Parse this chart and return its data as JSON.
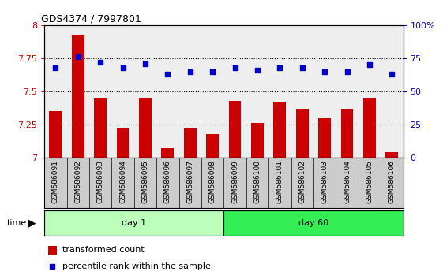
{
  "title": "GDS4374 / 7997801",
  "samples": [
    "GSM586091",
    "GSM586092",
    "GSM586093",
    "GSM586094",
    "GSM586095",
    "GSM586096",
    "GSM586097",
    "GSM586098",
    "GSM586099",
    "GSM586100",
    "GSM586101",
    "GSM586102",
    "GSM586103",
    "GSM586104",
    "GSM586105",
    "GSM586106"
  ],
  "bar_values": [
    7.35,
    7.92,
    7.45,
    7.22,
    7.45,
    7.07,
    7.22,
    7.18,
    7.43,
    7.26,
    7.42,
    7.37,
    7.3,
    7.37,
    7.45,
    7.04
  ],
  "dot_values": [
    68,
    76,
    72,
    68,
    71,
    63,
    65,
    65,
    68,
    66,
    68,
    68,
    65,
    65,
    70,
    63
  ],
  "bar_color": "#cc0000",
  "dot_color": "#0000cc",
  "ylim_left": [
    7.0,
    8.0
  ],
  "ylim_right": [
    0,
    100
  ],
  "yticks_left": [
    7.0,
    7.25,
    7.5,
    7.75,
    8.0
  ],
  "yticks_right": [
    0,
    25,
    50,
    75,
    100
  ],
  "ytick_labels_left": [
    "7",
    "7.25",
    "7.5",
    "7.75",
    "8"
  ],
  "ytick_labels_right": [
    "0",
    "25",
    "50",
    "75",
    "100%"
  ],
  "day1_samples": 8,
  "day60_samples": 8,
  "day1_label": "day 1",
  "day60_label": "day 60",
  "day1_color": "#bbffbb",
  "day60_color": "#33ee55",
  "time_label": "time",
  "legend_bar_label": "transformed count",
  "legend_dot_label": "percentile rank within the sample",
  "label_bg_color": "#cccccc",
  "plot_bg_color": "#eeeeee",
  "fig_width": 5.61,
  "fig_height": 3.54,
  "dpi": 100
}
